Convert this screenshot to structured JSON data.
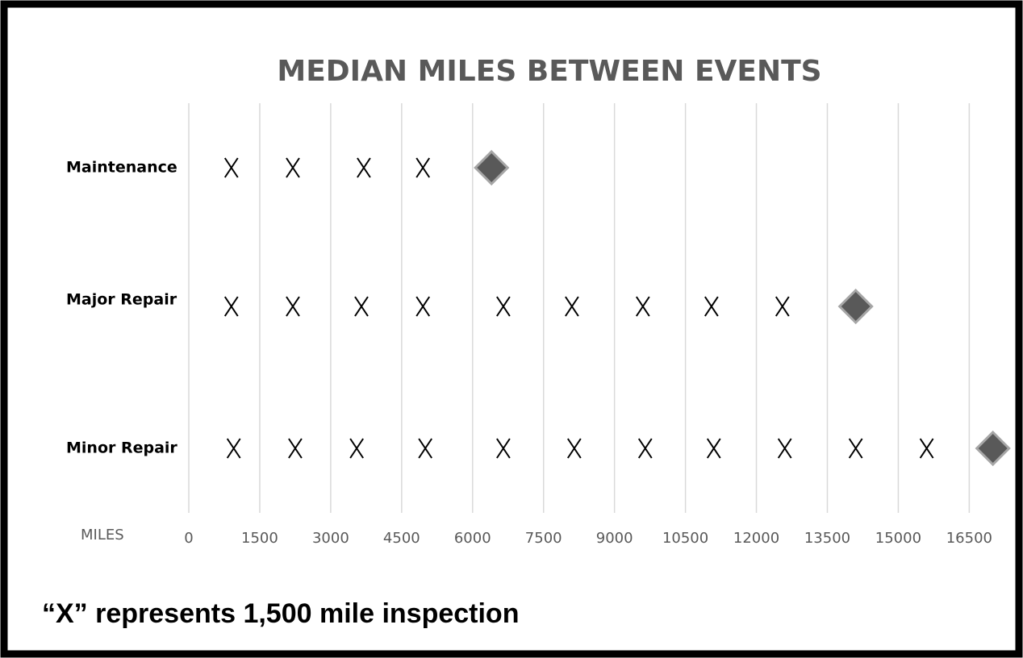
{
  "chart_data": {
    "type": "dotplot",
    "title": "MEDIAN MILES BETWEEN EVENTS",
    "x_label": "MILES",
    "annotation": "“X” represents 1,500 mile inspection",
    "categories": [
      "Maintenance",
      "Major Repair",
      "Minor Repair"
    ],
    "inspections": [
      [
        900,
        2200,
        3700,
        4950
      ],
      [
        900,
        2200,
        3650,
        4950,
        6650,
        8100,
        9600,
        11050,
        12550
      ],
      [
        950,
        2250,
        3550,
        5000,
        6650,
        8150,
        9650,
        11100,
        12600,
        14100,
        15600
      ]
    ],
    "medians": [
      6400,
      14100,
      17000
    ],
    "inspection_color": "#000000",
    "median_color": "#595959",
    "xlim": [
      0,
      17500
    ],
    "xticks": [
      0,
      1500,
      3000,
      4500,
      6000,
      7500,
      9000,
      10500,
      12000,
      13500,
      15000,
      16500
    ],
    "grid": true
  }
}
